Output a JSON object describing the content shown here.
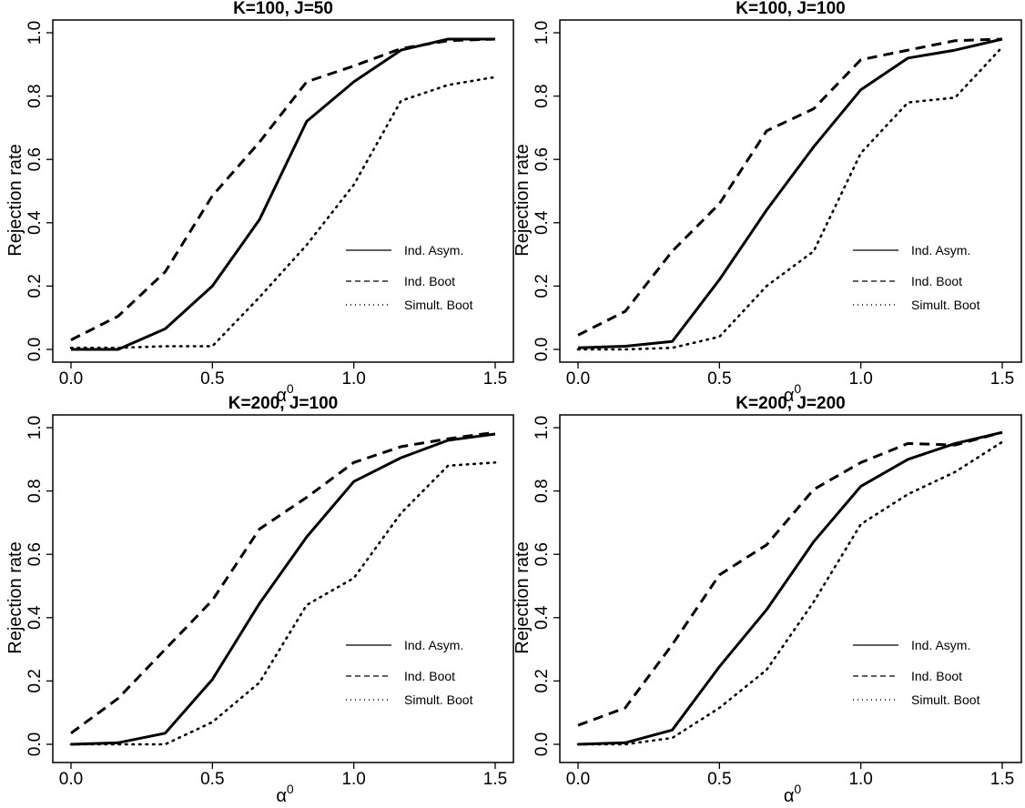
{
  "figure": {
    "x_tick_labels": [
      "0.0",
      "0.5",
      "1.0",
      "1.5"
    ],
    "y_tick_labels": [
      "0.0",
      "0.2",
      "0.4",
      "0.6",
      "0.8",
      "1.0"
    ],
    "xlabel_main": "α",
    "xlabel_sup": "0",
    "ylabel": "Rejection rate",
    "legend": [
      "Ind. Asym.",
      "Ind. Boot",
      "Simult. Boot"
    ]
  },
  "chart_data": [
    {
      "type": "line",
      "title": "K=100, J=50",
      "xlabel": "α0",
      "ylabel": "Rejection rate",
      "xlim": [
        0,
        1.5
      ],
      "ylim": [
        0,
        1
      ],
      "grid": false,
      "legend_position": "right",
      "x": [
        0,
        0.1667,
        0.3333,
        0.5,
        0.6667,
        0.8333,
        1.0,
        1.1667,
        1.3333,
        1.5
      ],
      "series": [
        {
          "name": "Ind. Asym.",
          "style": "solid",
          "values": [
            0.0,
            0.0,
            0.065,
            0.2,
            0.41,
            0.72,
            0.845,
            0.945,
            0.98,
            0.98
          ]
        },
        {
          "name": "Ind. Boot",
          "style": "dashed",
          "values": [
            0.03,
            0.105,
            0.245,
            0.485,
            0.655,
            0.845,
            0.895,
            0.95,
            0.975,
            0.98
          ]
        },
        {
          "name": "Simult. Boot",
          "style": "dotted",
          "values": [
            0.005,
            0.005,
            0.01,
            0.01,
            0.165,
            0.33,
            0.52,
            0.785,
            0.835,
            0.86
          ]
        }
      ]
    },
    {
      "type": "line",
      "title": "K=100, J=100",
      "xlabel": "α0",
      "ylabel": "Rejection rate",
      "xlim": [
        0,
        1.5
      ],
      "ylim": [
        0,
        1
      ],
      "grid": false,
      "legend_position": "right",
      "x": [
        0,
        0.1667,
        0.3333,
        0.5,
        0.6667,
        0.8333,
        1.0,
        1.1667,
        1.3333,
        1.5
      ],
      "series": [
        {
          "name": "Ind. Asym.",
          "style": "solid",
          "values": [
            0.005,
            0.01,
            0.025,
            0.22,
            0.44,
            0.64,
            0.82,
            0.92,
            0.945,
            0.98
          ]
        },
        {
          "name": "Ind. Boot",
          "style": "dashed",
          "values": [
            0.045,
            0.12,
            0.31,
            0.46,
            0.69,
            0.76,
            0.915,
            0.945,
            0.975,
            0.98
          ]
        },
        {
          "name": "Simult. Boot",
          "style": "dotted",
          "values": [
            0.0,
            0.0,
            0.005,
            0.04,
            0.2,
            0.31,
            0.62,
            0.78,
            0.795,
            0.955
          ]
        }
      ]
    },
    {
      "type": "line",
      "title": "K=200, J=100",
      "xlabel": "α0",
      "ylabel": "Rejection rate",
      "xlim": [
        0,
        1.5
      ],
      "ylim": [
        0,
        1
      ],
      "grid": false,
      "legend_position": "right",
      "x": [
        0,
        0.1667,
        0.3333,
        0.5,
        0.6667,
        0.8333,
        1.0,
        1.1667,
        1.3333,
        1.5
      ],
      "series": [
        {
          "name": "Ind. Asym.",
          "style": "solid",
          "values": [
            0.0,
            0.005,
            0.035,
            0.205,
            0.445,
            0.655,
            0.83,
            0.905,
            0.96,
            0.98
          ]
        },
        {
          "name": "Ind. Boot",
          "style": "dashed",
          "values": [
            0.035,
            0.145,
            0.3,
            0.455,
            0.68,
            0.78,
            0.89,
            0.94,
            0.965,
            0.985
          ]
        },
        {
          "name": "Simult. Boot",
          "style": "dotted",
          "values": [
            0.0,
            0.0,
            0.0,
            0.07,
            0.195,
            0.44,
            0.525,
            0.73,
            0.88,
            0.89
          ]
        }
      ]
    },
    {
      "type": "line",
      "title": "K=200, J=200",
      "xlabel": "α0",
      "ylabel": "Rejection rate",
      "xlim": [
        0,
        1.5
      ],
      "ylim": [
        0,
        1
      ],
      "grid": false,
      "legend_position": "right",
      "x": [
        0,
        0.1667,
        0.3333,
        0.5,
        0.6667,
        0.8333,
        1.0,
        1.1667,
        1.3333,
        1.5
      ],
      "series": [
        {
          "name": "Ind. Asym.",
          "style": "solid",
          "values": [
            0.0,
            0.005,
            0.045,
            0.245,
            0.425,
            0.64,
            0.815,
            0.9,
            0.95,
            0.985
          ]
        },
        {
          "name": "Ind. Boot",
          "style": "dashed",
          "values": [
            0.06,
            0.115,
            0.315,
            0.535,
            0.63,
            0.805,
            0.89,
            0.95,
            0.945,
            0.985
          ]
        },
        {
          "name": "Simult. Boot",
          "style": "dotted",
          "values": [
            0.0,
            0.0,
            0.02,
            0.115,
            0.235,
            0.45,
            0.695,
            0.79,
            0.86,
            0.955
          ]
        }
      ]
    }
  ]
}
